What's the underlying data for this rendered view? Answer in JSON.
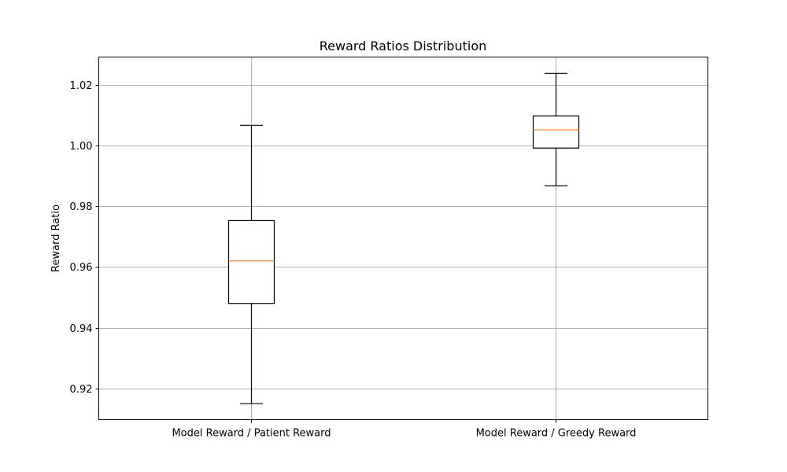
{
  "chart_data": {
    "type": "box",
    "title": "Reward Ratios Distribution",
    "xlabel": "",
    "ylabel": "Reward Ratio",
    "categories": [
      "Model Reward / Patient Reward",
      "Model Reward / Greedy Reward"
    ],
    "boxes": [
      {
        "whisker_low": 0.915,
        "q1": 0.948,
        "median": 0.962,
        "q3": 0.9753,
        "whisker_high": 1.0067
      },
      {
        "whisker_low": 0.9868,
        "q1": 0.9992,
        "median": 1.0052,
        "q3": 1.0098,
        "whisker_high": 1.0238
      }
    ],
    "ylim": [
      0.9097,
      1.0292
    ],
    "yticks": [
      0.92,
      0.94,
      0.96,
      0.98,
      1.0,
      1.02
    ],
    "ytick_labels": [
      "0.92",
      "0.94",
      "0.96",
      "0.98",
      "1.00",
      "1.02"
    ],
    "grid": true,
    "colors": {
      "box": "#000000",
      "median": "#ff7f0e",
      "grid": "#b0b0b0"
    }
  }
}
